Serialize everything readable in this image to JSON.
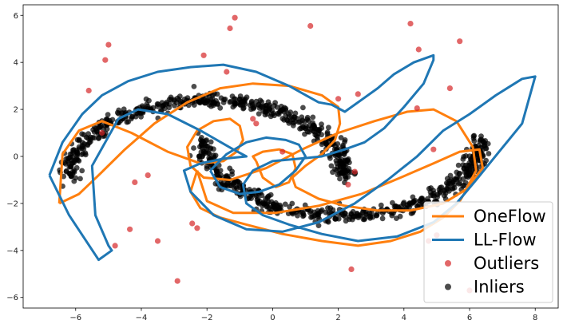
{
  "chart_data": {
    "type": "scatter",
    "title": "",
    "xlabel": "",
    "ylabel": "",
    "xlim": [
      -7.6,
      8.7
    ],
    "ylim": [
      -6.45,
      6.45
    ],
    "xticks": [
      -6,
      -4,
      -2,
      0,
      2,
      4,
      6,
      8
    ],
    "yticks": [
      -6,
      -4,
      -2,
      0,
      2,
      4,
      6
    ],
    "grid": false,
    "legend_position": "bottom-right",
    "series": [
      {
        "name": "OneFlow",
        "kind": "contour",
        "color": "#ff7f0e",
        "paths": [
          {
            "x": [
              -6.5,
              -5.9,
              -5.3,
              -4.5,
              -3.6,
              -2.6,
              -1.6,
              -0.6,
              0.5,
              1.5,
              2.0,
              2.05,
              1.9,
              1.5,
              1.0,
              0.6,
              0.7,
              1.4,
              2.2,
              3.2,
              4.2,
              5.2,
              5.9,
              6.2,
              6.1,
              5.6,
              4.9,
              4.1,
              3.1,
              2.0,
              0.9,
              -0.2,
              -1.3,
              -2.1,
              -2.5,
              -2.6,
              -2.3,
              -1.8,
              -1.3,
              -1.0,
              -0.9,
              -1.1,
              -1.5,
              -2.2,
              -3.2,
              -4.3,
              -5.2,
              -5.9,
              -6.4,
              -6.5
            ],
            "y": [
              -2.0,
              -1.6,
              -0.8,
              0.3,
              1.4,
              2.3,
              2.9,
              3.1,
              3.0,
              2.6,
              2.1,
              1.4,
              0.7,
              0.1,
              -0.4,
              -0.9,
              -1.3,
              -1.8,
              -2.1,
              -2.3,
              -2.3,
              -2.0,
              -1.4,
              -0.6,
              0.4,
              1.5,
              2.0,
              1.9,
              1.5,
              1.0,
              0.3,
              -0.5,
              -1.0,
              -0.9,
              -0.4,
              0.4,
              1.1,
              1.5,
              1.6,
              1.3,
              0.7,
              0.2,
              -0.2,
              -0.3,
              0.2,
              1.0,
              1.5,
              1.1,
              0.1,
              -2.0
            ]
          },
          {
            "x": [
              -2.3,
              -2.5,
              -2.2,
              -1.6,
              -0.8,
              0.3,
              1.5,
              2.6,
              3.6,
              4.5,
              5.2,
              5.7,
              6.0,
              6.4,
              6.3,
              5.7,
              4.9,
              3.9,
              2.7,
              1.4,
              0.1,
              -1.2,
              -2.0,
              -2.3
            ],
            "y": [
              -0.6,
              -1.5,
              -2.2,
              -2.6,
              -2.9,
              -3.3,
              -3.6,
              -3.8,
              -3.6,
              -3.2,
              -2.6,
              -1.9,
              -1.2,
              -0.5,
              0.3,
              0.2,
              -0.3,
              -0.9,
              -1.6,
              -2.1,
              -2.4,
              -2.4,
              -1.9,
              -0.6
            ]
          },
          {
            "x": [
              -0.5,
              -0.3,
              0.1,
              0.5,
              0.7,
              0.6,
              0.2,
              -0.3,
              -0.6,
              -0.5
            ],
            "y": [
              -0.2,
              -0.9,
              -1.3,
              -1.1,
              -0.5,
              0.1,
              0.3,
              0.2,
              0.0,
              -0.2
            ]
          }
        ]
      },
      {
        "name": "LL-Flow",
        "kind": "contour",
        "color": "#1f77b4",
        "paths": [
          {
            "x": [
              -6.8,
              -6.4,
              -5.8,
              -5.2,
              -4.4,
              -3.5,
              -2.5,
              -1.5,
              -0.5,
              0.5,
              1.4,
              1.8,
              2.2,
              2.7,
              3.2,
              3.7,
              4.3,
              4.9,
              4.9,
              4.6,
              4.0,
              3.4,
              2.8,
              2.2,
              1.5,
              0.8,
              0.0,
              -0.6,
              -0.9,
              -0.8,
              -0.3,
              0.5,
              1.5,
              2.6,
              3.8,
              4.9,
              5.6,
              6.2,
              6.9,
              7.6,
              8.0,
              7.6,
              6.8,
              6.0,
              5.2,
              4.4,
              3.5,
              2.5,
              1.4,
              0.3,
              -0.8,
              -1.8,
              -2.5,
              -2.7,
              -2.2,
              -1.5,
              -0.8,
              -1.2,
              -2.2,
              -3.2,
              -4.1,
              -4.7,
              -5.1,
              -5.5,
              -5.4,
              -5.0,
              -4.9,
              -5.3,
              -6.2,
              -6.8
            ],
            "y": [
              -0.8,
              0.6,
              1.8,
              2.6,
              3.2,
              3.6,
              3.8,
              3.9,
              3.6,
              3.0,
              2.3,
              2.2,
              1.9,
              2.4,
              2.9,
              3.5,
              4.0,
              4.3,
              4.1,
              3.1,
              2.1,
              1.2,
              0.6,
              0.3,
              0.0,
              -0.1,
              -0.2,
              -0.6,
              -1.2,
              -2.0,
              -2.5,
              -2.9,
              -3.3,
              -3.6,
              -3.4,
              -2.8,
              -2.0,
              -1.0,
              0.2,
              1.4,
              3.4,
              3.3,
              2.6,
              1.8,
              1.1,
              0.0,
              -1.0,
              -2.0,
              -2.8,
              -3.2,
              -3.1,
              -2.5,
              -1.5,
              -0.6,
              -0.3,
              -0.1,
              0.0,
              0.3,
              1.1,
              1.8,
              2.0,
              1.6,
              0.6,
              -0.4,
              -2.5,
              -3.8,
              -4.0,
              -4.4,
              -2.5,
              -0.8
            ]
          },
          {
            "x": [
              -1.9,
              -1.6,
              -1.0,
              -0.4,
              0.2,
              0.7,
              1.0,
              0.8,
              0.4,
              -0.2,
              -0.8,
              -1.4,
              -1.9
            ],
            "y": [
              -0.6,
              -1.3,
              -1.6,
              -1.5,
              -1.2,
              -0.6,
              0.0,
              0.5,
              0.7,
              0.8,
              0.6,
              0.1,
              -0.6
            ]
          }
        ]
      },
      {
        "name": "Outliers",
        "kind": "points",
        "color": "#d62728",
        "x": [
          -5.0,
          -5.1,
          -5.6,
          -2.1,
          -1.3,
          -1.15,
          -1.4,
          1.15,
          4.2,
          4.45,
          5.7,
          5.4,
          2.0,
          2.6,
          4.4,
          4.9,
          2.4,
          -2.9,
          -4.8,
          -4.35,
          -3.5,
          -2.45,
          -2.3,
          -3.8,
          -4.2,
          -5.2,
          -0.5,
          -0.6,
          0.3,
          2.3,
          2.5,
          6.0,
          5.0,
          4.75
        ],
        "y": [
          4.75,
          4.1,
          2.8,
          4.3,
          5.45,
          5.9,
          3.6,
          5.55,
          5.65,
          4.55,
          4.9,
          2.9,
          2.45,
          2.65,
          2.05,
          0.3,
          -4.8,
          -5.3,
          -3.8,
          -3.1,
          -3.6,
          -2.85,
          -3.05,
          -0.8,
          -1.1,
          1.0,
          1.4,
          1.6,
          0.2,
          -1.2,
          -0.65,
          -5.7,
          -3.35,
          -3.6
        ]
      },
      {
        "name": "Inliers",
        "kind": "points",
        "color": "#000000",
        "description": "two interleaving crescent clusters (~1000 points): upper arc from (-6.2,-0.9) to (2.2,-0.8); lower arc from (-2.2,0.9) to (6.3,0.6)"
      }
    ]
  }
}
